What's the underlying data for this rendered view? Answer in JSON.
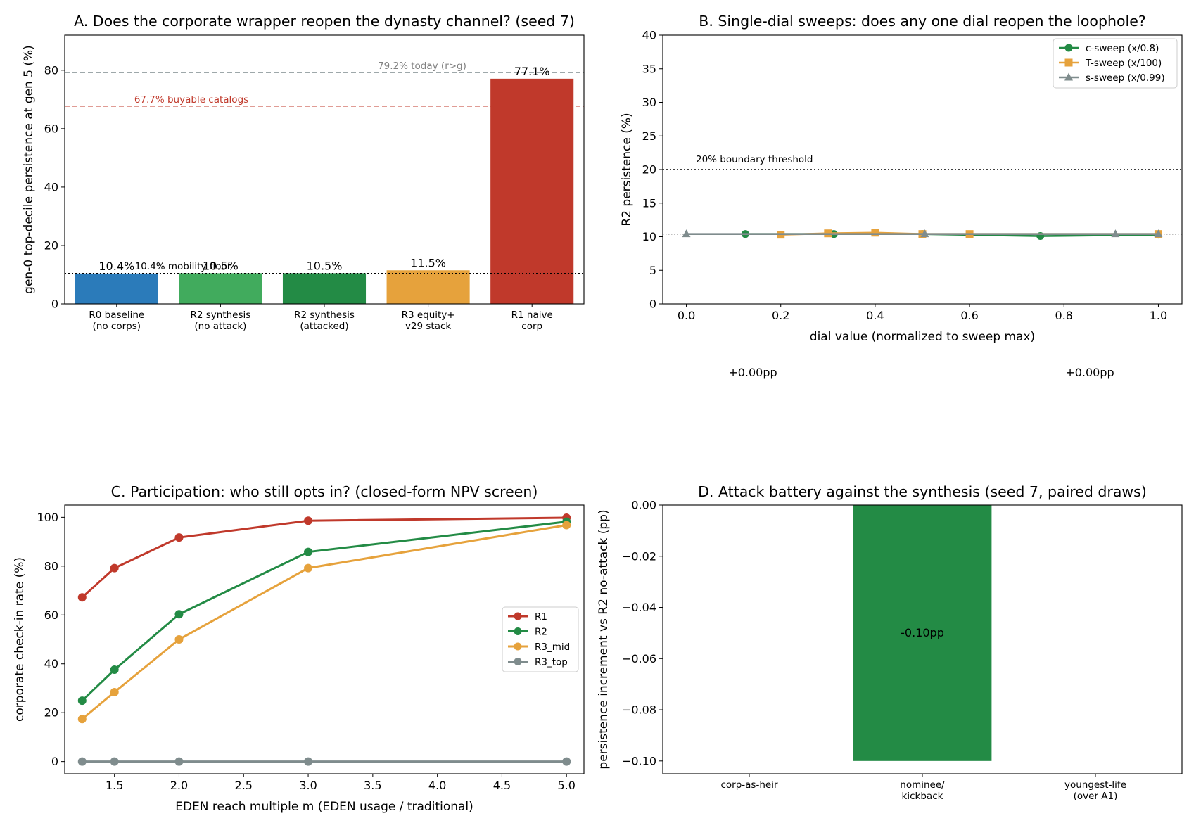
{
  "colors": {
    "blue": "#2b7bba",
    "light_green": "#41ab5d",
    "green": "#238b45",
    "orange": "#e6a23c",
    "red": "#c0392b",
    "gray": "#7f8c8d",
    "dark_gray": "#808080"
  },
  "chart_data": [
    {
      "id": "A",
      "type": "bar",
      "title": "A. Does the corporate wrapper reopen the dynasty channel? (seed 7)",
      "xlabel": "",
      "ylabel": "gen-0 top-decile persistence at gen 5 (%)",
      "ylim": [
        0,
        92
      ],
      "yticks": [
        0,
        20,
        40,
        60,
        80
      ],
      "categories": [
        [
          "R0 baseline",
          "(no corps)"
        ],
        [
          "R2 synthesis",
          "(no attack)"
        ],
        [
          "R2 synthesis",
          "(attacked)"
        ],
        [
          "R3 equity+",
          "v29 stack"
        ],
        [
          "R1 naive",
          "corp"
        ]
      ],
      "values": [
        10.4,
        10.5,
        10.5,
        11.5,
        77.1
      ],
      "value_labels": [
        "10.4%",
        "10.5%",
        "10.5%",
        "11.5%",
        "77.1%"
      ],
      "bar_colors": [
        "blue",
        "light_green",
        "green",
        "orange",
        "red"
      ],
      "reference_lines": [
        {
          "value": 79.2,
          "label": "79.2% today (r>g)",
          "style": "dashed",
          "color": "gray"
        },
        {
          "value": 67.7,
          "label": "67.7% buyable catalogs",
          "style": "dashed",
          "color": "red"
        },
        {
          "value": 10.4,
          "label": "10.4% mobility floor",
          "style": "dotted",
          "color": "black"
        }
      ],
      "grid": false
    },
    {
      "id": "B",
      "type": "line",
      "title": "B. Single-dial sweeps: does any one dial reopen the loophole?",
      "xlabel": "dial value (normalized to sweep max)",
      "ylabel": "R2 persistence (%)",
      "xlim": [
        -0.05,
        1.05
      ],
      "ylim": [
        0,
        40
      ],
      "xticks": [
        0.0,
        0.2,
        0.4,
        0.6,
        0.8,
        1.0
      ],
      "xtick_labels": [
        "0.0",
        "0.2",
        "0.4",
        "0.6",
        "0.8",
        "1.0"
      ],
      "yticks": [
        0,
        5,
        10,
        15,
        20,
        25,
        30,
        35,
        40
      ],
      "series": [
        {
          "name": "c-sweep (x/0.8)",
          "color": "green",
          "marker": "circle",
          "x": [
            0.125,
            0.3125,
            0.5,
            0.75,
            1.0
          ],
          "y": [
            10.4,
            10.4,
            10.4,
            10.1,
            10.3
          ]
        },
        {
          "name": "T-sweep (x/100)",
          "color": "orange",
          "marker": "square",
          "x": [
            0.2,
            0.3,
            0.4,
            0.5,
            0.6,
            1.0
          ],
          "y": [
            10.3,
            10.5,
            10.6,
            10.4,
            10.4,
            10.4
          ]
        },
        {
          "name": "s-sweep (x/0.99)",
          "color": "gray",
          "marker": "triangle",
          "x": [
            0.0,
            0.505,
            0.909,
            1.0
          ],
          "y": [
            10.4,
            10.4,
            10.4,
            10.4
          ]
        }
      ],
      "reference_lines": [
        {
          "value": 20,
          "label": "20% boundary threshold",
          "style": "dotted",
          "color": "black"
        },
        {
          "value": 10.4,
          "label": "",
          "style": "dotted",
          "color": "black"
        }
      ],
      "legend": "top-right",
      "annotations": [
        "+0.00pp",
        "+0.00pp"
      ],
      "grid": false
    },
    {
      "id": "C",
      "type": "line",
      "title": "C. Participation: who still opts in? (closed-form NPV screen)",
      "xlabel": "EDEN reach multiple m (EDEN usage / traditional)",
      "ylabel": "corporate check-in rate (%)",
      "xlim": [
        1.115,
        5.135
      ],
      "ylim": [
        -5,
        105
      ],
      "xticks": [
        1.5,
        2.0,
        2.5,
        3.0,
        3.5,
        4.0,
        4.5,
        5.0
      ],
      "xtick_labels": [
        "1.5",
        "2.0",
        "2.5",
        "3.0",
        "3.5",
        "4.0",
        "4.5",
        "5.0"
      ],
      "yticks": [
        0,
        20,
        40,
        60,
        80,
        100
      ],
      "x": [
        1.25,
        1.5,
        2.0,
        3.0,
        5.0
      ],
      "series": [
        {
          "name": "R1",
          "color": "red",
          "values": [
            67.2,
            79.2,
            91.7,
            98.6,
            99.8
          ]
        },
        {
          "name": "R2",
          "color": "green",
          "values": [
            24.9,
            37.6,
            60.3,
            85.8,
            98.2
          ]
        },
        {
          "name": "R3_mid",
          "color": "orange",
          "values": [
            17.4,
            28.4,
            50.0,
            79.2,
            96.8
          ]
        },
        {
          "name": "R3_top",
          "color": "gray",
          "values": [
            0,
            0,
            0,
            0,
            0
          ]
        }
      ],
      "legend": "center-right",
      "grid": false
    },
    {
      "id": "D",
      "type": "bar",
      "title": "D. Attack battery against the synthesis (seed 7, paired draws)",
      "xlabel": "",
      "ylabel": "persistence increment vs R2 no-attack (pp)",
      "ylim": [
        -0.105,
        0.0
      ],
      "yticks": [
        0.0,
        -0.02,
        -0.04,
        -0.06,
        -0.08,
        -0.1
      ],
      "ytick_labels": [
        "0.00",
        "−0.02",
        "−0.04",
        "−0.06",
        "−0.08",
        "−0.10"
      ],
      "categories": [
        [
          "corp-as-heir"
        ],
        [
          "nominee/",
          "kickback"
        ],
        [
          "youngest-life",
          "(over A1)"
        ]
      ],
      "values": [
        0.0,
        -0.1,
        0.0
      ],
      "value_labels": [
        "",
        "-0.10pp",
        ""
      ],
      "bar_colors": [
        "green",
        "green",
        "green"
      ],
      "grid": false
    }
  ]
}
